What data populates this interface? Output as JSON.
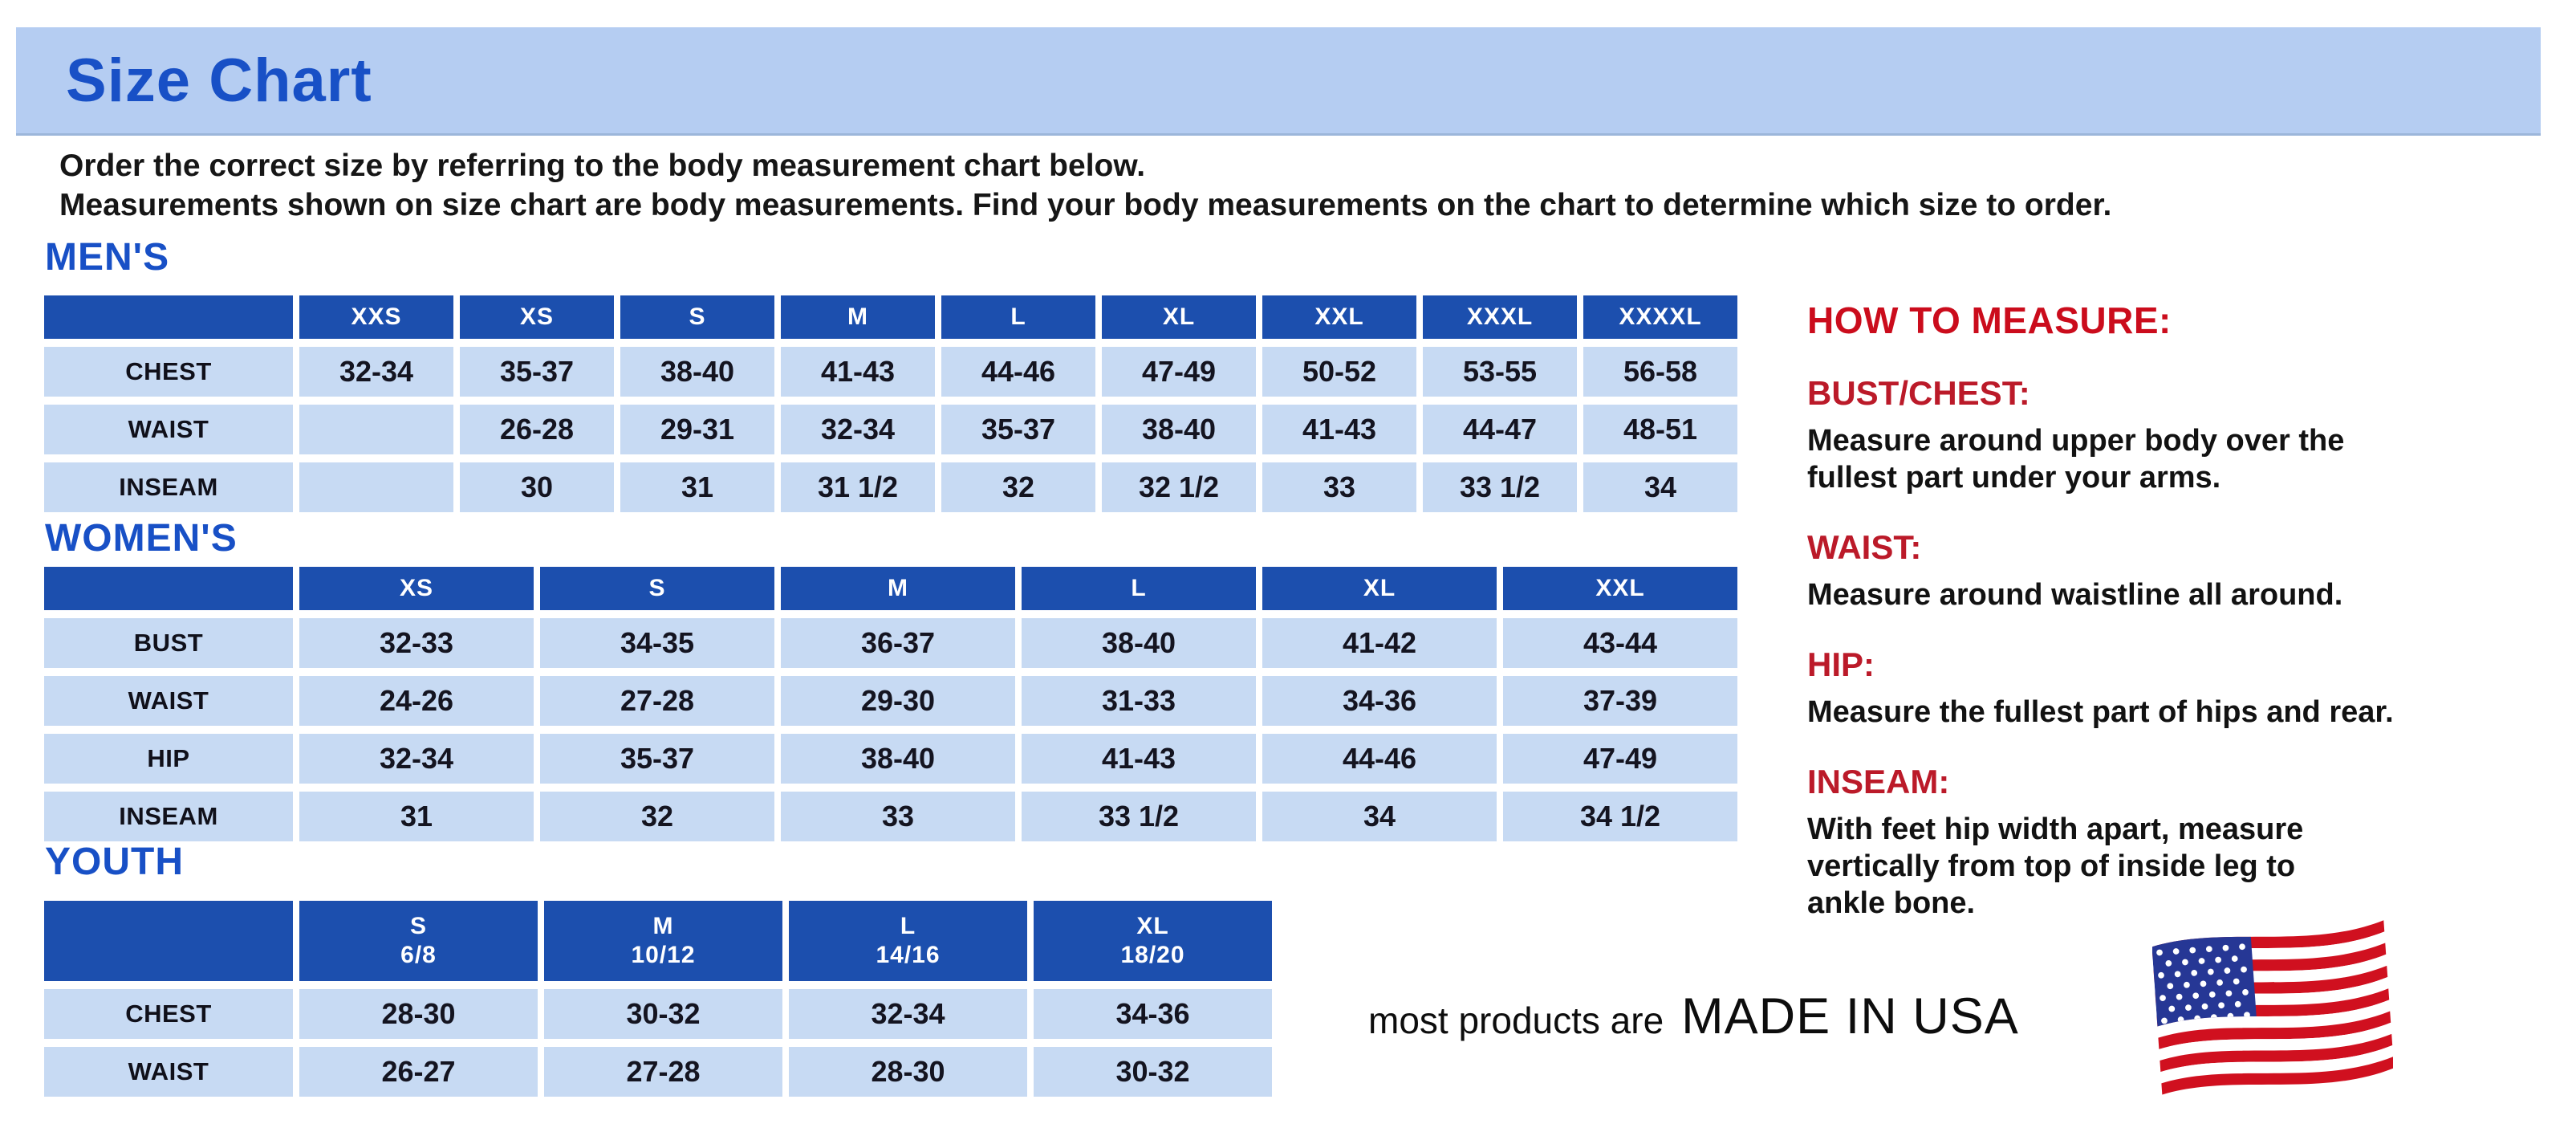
{
  "page": {
    "title": "Size Chart",
    "intro_line1": "Order the correct size by referring to the body measurement chart below.",
    "intro_line2": "Measurements shown on size chart are body measurements.  Find your body measurements on the chart to determine which size to order."
  },
  "colors": {
    "banner_bg": "#b5cdf2",
    "title_blue": "#1850c6",
    "header_blue": "#1c4fae",
    "cell_blue": "#c7daf3",
    "red_main": "#cb0c1c",
    "red_sub": "#bb1a29",
    "flag_red": "#d0101f",
    "flag_navy": "#263795"
  },
  "tables": {
    "mens": {
      "heading": "MEN'S",
      "columns": [
        "XXS",
        "XS",
        "S",
        "M",
        "L",
        "XL",
        "XXL",
        "XXXL",
        "XXXXL"
      ],
      "rows": [
        {
          "label": "CHEST",
          "values": [
            "32-34",
            "35-37",
            "38-40",
            "41-43",
            "44-46",
            "47-49",
            "50-52",
            "53-55",
            "56-58"
          ]
        },
        {
          "label": "WAIST",
          "values": [
            "",
            "26-28",
            "29-31",
            "32-34",
            "35-37",
            "38-40",
            "41-43",
            "44-47",
            "48-51"
          ]
        },
        {
          "label": "INSEAM",
          "values": [
            "",
            "30",
            "31",
            "31 1/2",
            "32",
            "32 1/2",
            "33",
            "33 1/2",
            "34"
          ]
        }
      ]
    },
    "womens": {
      "heading": "WOMEN'S",
      "columns": [
        "XS",
        "S",
        "M",
        "L",
        "XL",
        "XXL"
      ],
      "rows": [
        {
          "label": "BUST",
          "values": [
            "32-33",
            "34-35",
            "36-37",
            "38-40",
            "41-42",
            "43-44"
          ]
        },
        {
          "label": "WAIST",
          "values": [
            "24-26",
            "27-28",
            "29-30",
            "31-33",
            "34-36",
            "37-39"
          ]
        },
        {
          "label": "HIP",
          "values": [
            "32-34",
            "35-37",
            "38-40",
            "41-43",
            "44-46",
            "47-49"
          ]
        },
        {
          "label": "INSEAM",
          "values": [
            "31",
            "32",
            "33",
            "33 1/2",
            "34",
            "34 1/2"
          ]
        }
      ]
    },
    "youth": {
      "heading": "YOUTH",
      "columns": [
        "S\n6/8",
        "M\n10/12",
        "L\n14/16",
        "XL\n18/20"
      ],
      "rows": [
        {
          "label": "CHEST",
          "values": [
            "28-30",
            "30-32",
            "32-34",
            "34-36"
          ]
        },
        {
          "label": "WAIST",
          "values": [
            "26-27",
            "27-28",
            "28-30",
            "30-32"
          ]
        }
      ]
    }
  },
  "how_to_measure": {
    "heading": "HOW TO MEASURE:",
    "items": [
      {
        "term": "BUST/CHEST:",
        "desc": "Measure around upper body over the\nfullest part under your arms."
      },
      {
        "term": "WAIST:",
        "desc": "Measure around waistline all around."
      },
      {
        "term": "HIP:",
        "desc": "Measure the fullest part of hips and rear."
      },
      {
        "term": "INSEAM:",
        "desc": "With feet hip width apart, measure\nvertically from top of inside leg to\nankle bone."
      }
    ]
  },
  "footer": {
    "made_in_prefix": "most products are",
    "made_in": "MADE IN USA"
  }
}
